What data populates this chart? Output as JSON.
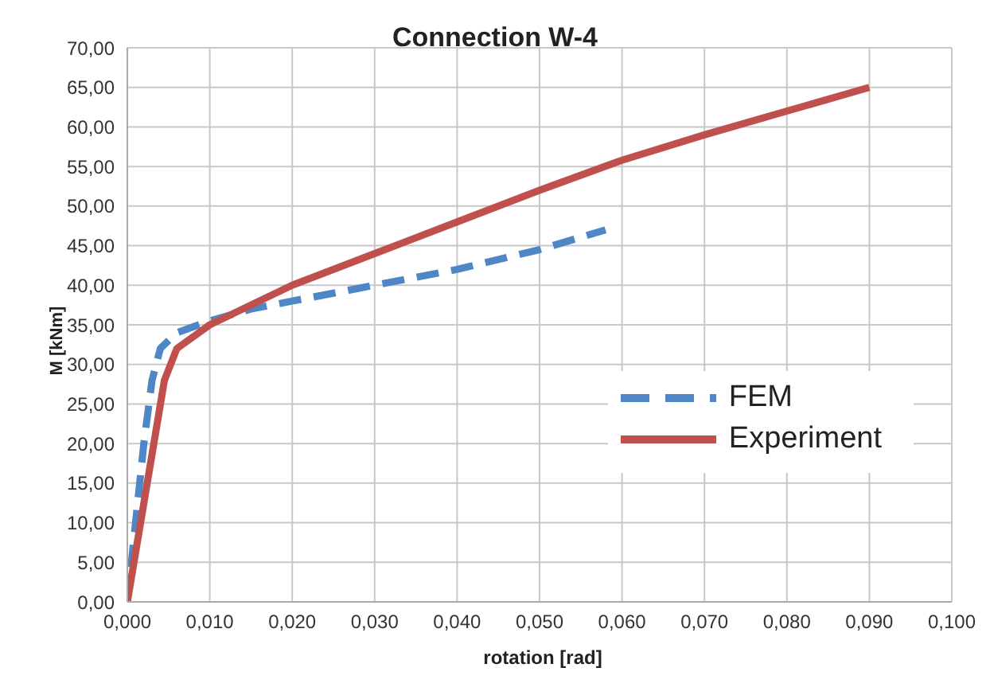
{
  "chart_data": {
    "type": "line",
    "title": "Connection W-4",
    "xlabel": "rotation [rad]",
    "ylabel": "M [kNm]",
    "series": [
      {
        "name": "FEM",
        "color": "#4f86c6",
        "line_style": "dashed",
        "x": [
          0,
          0.001,
          0.002,
          0.003,
          0.004,
          0.006,
          0.01,
          0.015,
          0.02,
          0.03,
          0.04,
          0.05,
          0.058
        ],
        "values": [
          0,
          10,
          20,
          28,
          32,
          34,
          35.5,
          37,
          38,
          40,
          42,
          44.5,
          47
        ]
      },
      {
        "name": "Experiment",
        "color": "#c0504d",
        "line_style": "solid",
        "x": [
          0,
          0.0045,
          0.006,
          0.01,
          0.02,
          0.03,
          0.04,
          0.05,
          0.06,
          0.07,
          0.08,
          0.09
        ],
        "values": [
          0,
          28,
          32,
          35,
          40,
          44,
          48,
          52,
          55.8,
          59,
          62,
          65
        ]
      }
    ],
    "xlim": [
      0,
      0.1
    ],
    "xticks": [
      {
        "value": 0,
        "label": "0,000"
      },
      {
        "value": 0.01,
        "label": "0,010"
      },
      {
        "value": 0.02,
        "label": "0,020"
      },
      {
        "value": 0.03,
        "label": "0,030"
      },
      {
        "value": 0.04,
        "label": "0,040"
      },
      {
        "value": 0.05,
        "label": "0,050"
      },
      {
        "value": 0.06,
        "label": "0,060"
      },
      {
        "value": 0.07,
        "label": "0,070"
      },
      {
        "value": 0.08,
        "label": "0,080"
      },
      {
        "value": 0.09,
        "label": "0,090"
      },
      {
        "value": 0.1,
        "label": "0,100"
      }
    ],
    "ylim": [
      0,
      70
    ],
    "yticks": [
      {
        "value": 0,
        "label": "0,00"
      },
      {
        "value": 5,
        "label": "5,00"
      },
      {
        "value": 10,
        "label": "10,00"
      },
      {
        "value": 15,
        "label": "15,00"
      },
      {
        "value": 20,
        "label": "20,00"
      },
      {
        "value": 25,
        "label": "25,00"
      },
      {
        "value": 30,
        "label": "30,00"
      },
      {
        "value": 35,
        "label": "35,00"
      },
      {
        "value": 40,
        "label": "40,00"
      },
      {
        "value": 45,
        "label": "45,00"
      },
      {
        "value": 50,
        "label": "50,00"
      },
      {
        "value": 55,
        "label": "55,00"
      },
      {
        "value": 60,
        "label": "60,00"
      },
      {
        "value": 65,
        "label": "65,00"
      },
      {
        "value": 70,
        "label": "70,00"
      }
    ],
    "grid": true,
    "legend": "right",
    "marker": "none"
  }
}
